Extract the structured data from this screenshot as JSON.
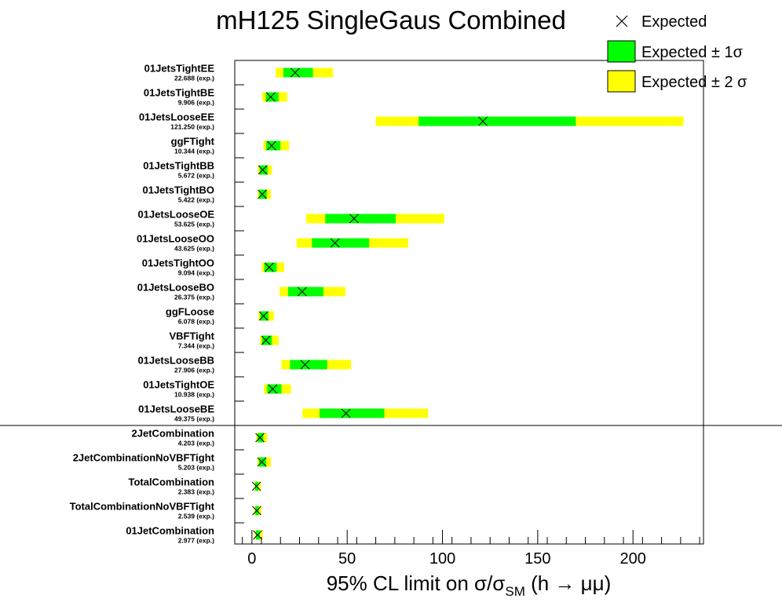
{
  "chart_data": {
    "type": "bar",
    "orientation": "horizontal",
    "title": "mH125 SingleGaus Combined",
    "xlabel": "95% CL limit on σ/σ_SM (h → μμ)",
    "xlabel_parts": {
      "main": "95% CL limit on σ/σ",
      "sub": "SM",
      "tail": " (h → μμ)"
    },
    "xlim": [
      -9,
      237
    ],
    "xticks": [
      0,
      50,
      100,
      150,
      200
    ],
    "grid": false,
    "legend_position": "top-right",
    "legend": [
      {
        "label": "Expected",
        "marker": "x-icon"
      },
      {
        "label": "Expected ± 1σ",
        "color": "#00ff00"
      },
      {
        "label": "Expected ± 2 σ",
        "color": "#ffff00"
      }
    ],
    "colors": {
      "band1": "#00ff00",
      "band2": "#ffff00",
      "marker": "#000000"
    },
    "exp_suffix": " (exp.)",
    "separator_after_index": 14,
    "categories": [
      {
        "name": "01JetsTightEE",
        "expected": 22.688,
        "expected_label": "22.688",
        "band1": [
          16.5,
          32
        ],
        "band2": [
          12.5,
          42.5
        ]
      },
      {
        "name": "01JetsTightBE",
        "expected": 9.906,
        "expected_label": "9.906",
        "band1": [
          7.3,
          14
        ],
        "band2": [
          5.5,
          18.5
        ]
      },
      {
        "name": "01JetsLooseEE",
        "expected": 121.25,
        "expected_label": "121.250",
        "band1": [
          87.5,
          170
        ],
        "band2": [
          65,
          226.5
        ]
      },
      {
        "name": "ggFTight",
        "expected": 10.344,
        "expected_label": "10.344",
        "band1": [
          7.5,
          15
        ],
        "band2": [
          6,
          19.5
        ]
      },
      {
        "name": "01JetsTightBB",
        "expected": 5.672,
        "expected_label": "5.672",
        "band1": [
          4.1,
          8.2
        ],
        "band2": [
          3.2,
          10.5
        ]
      },
      {
        "name": "01JetsTightBO",
        "expected": 5.422,
        "expected_label": "5.422",
        "band1": [
          3.9,
          7.8
        ],
        "band2": [
          3.1,
          10
        ]
      },
      {
        "name": "01JetsLooseOE",
        "expected": 53.625,
        "expected_label": "53.625",
        "band1": [
          38.5,
          75.5
        ],
        "band2": [
          28.5,
          101
        ]
      },
      {
        "name": "01JetsLooseOO",
        "expected": 43.625,
        "expected_label": "43.625",
        "band1": [
          31.5,
          61.5
        ],
        "band2": [
          23.5,
          82
        ]
      },
      {
        "name": "01JetsTightOO",
        "expected": 9.094,
        "expected_label": "9.094",
        "band1": [
          6.5,
          13
        ],
        "band2": [
          5.2,
          17
        ]
      },
      {
        "name": "01JetsLooseBO",
        "expected": 26.375,
        "expected_label": "26.375",
        "band1": [
          19,
          37.5
        ],
        "band2": [
          14.5,
          49
        ]
      },
      {
        "name": "ggFLoose",
        "expected": 6.078,
        "expected_label": "6.078",
        "band1": [
          4.4,
          8.7
        ],
        "band2": [
          3.5,
          11.5
        ]
      },
      {
        "name": "VBFTight",
        "expected": 7.344,
        "expected_label": "7.344",
        "band1": [
          5.3,
          10.5
        ],
        "band2": [
          4.3,
          14
        ]
      },
      {
        "name": "01JetsLooseBB",
        "expected": 27.906,
        "expected_label": "27.906",
        "band1": [
          20,
          39.5
        ],
        "band2": [
          15.5,
          52
        ]
      },
      {
        "name": "01JetsTightOE",
        "expected": 10.938,
        "expected_label": "10.938",
        "band1": [
          8,
          15.5
        ],
        "band2": [
          6.3,
          20.5
        ]
      },
      {
        "name": "01JetsLooseBE",
        "expected": 49.375,
        "expected_label": "49.375",
        "band1": [
          35.5,
          69.5
        ],
        "band2": [
          26.5,
          92.5
        ]
      },
      {
        "name": "2JetCombination",
        "expected": 4.203,
        "expected_label": "4.203",
        "band1": [
          3,
          6
        ],
        "band2": [
          2.4,
          8
        ]
      },
      {
        "name": "2JetCombinationNoVBFTight",
        "expected": 5.203,
        "expected_label": "5.203",
        "band1": [
          3.7,
          7.4
        ],
        "band2": [
          2.9,
          10
        ]
      },
      {
        "name": "TotalCombination",
        "expected": 2.383,
        "expected_label": "2.383",
        "band1": [
          1.7,
          3.4
        ],
        "band2": [
          1.3,
          4.6
        ]
      },
      {
        "name": "TotalCombinationNoVBFTight",
        "expected": 2.539,
        "expected_label": "2.539",
        "band1": [
          1.8,
          3.6
        ],
        "band2": [
          1.4,
          4.9
        ]
      },
      {
        "name": "01JetCombination",
        "expected": 2.977,
        "expected_label": "2.977",
        "band1": [
          2.1,
          4.2
        ],
        "band2": [
          1.6,
          5.7
        ]
      }
    ]
  }
}
